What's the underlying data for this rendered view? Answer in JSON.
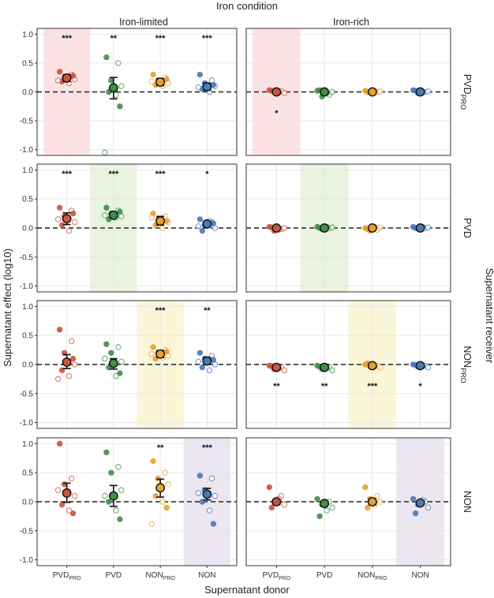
{
  "chart_data": {
    "type": "scatter",
    "title": "Iron condition",
    "xlabel": "Supernatant donor",
    "ylabel": "Supernatant effect (log10)",
    "right_label": "Supernatant receiver",
    "column_titles": [
      "Iron-limited",
      "Iron-rich"
    ],
    "rows": [
      {
        "key": "PVD",
        "sub": "PRO"
      },
      {
        "key": "PVD",
        "sub": ""
      },
      {
        "key": "NON",
        "sub": "PRO"
      },
      {
        "key": "NON",
        "sub": ""
      }
    ],
    "donors": [
      {
        "key": "PVD",
        "sub": "PRO"
      },
      {
        "key": "PVD",
        "sub": ""
      },
      {
        "key": "NON",
        "sub": "PRO"
      },
      {
        "key": "NON",
        "sub": ""
      }
    ],
    "donor_colors": [
      "#c8553d",
      "#3f8f4a",
      "#e8a030",
      "#4a7ab8"
    ],
    "highlight_colors": [
      "#fde2e4",
      "#e9f3df",
      "#fbf6d8",
      "#ece6f1"
    ],
    "ylim": [
      -1.1,
      1.1
    ],
    "yticks": [
      -1.0,
      -0.5,
      0.0,
      0.5,
      1.0
    ],
    "ytick_labels": [
      "-1.0",
      "-0.5",
      "0.0",
      "0.5",
      "1.0"
    ],
    "reference_line": 0,
    "panels": [
      {
        "row": 0,
        "col": 0,
        "means": [
          0.24,
          0.07,
          0.17,
          0.09
        ],
        "ci": [
          [
            0.18,
            0.3
          ],
          [
            -0.12,
            0.25
          ],
          [
            0.11,
            0.23
          ],
          [
            0.03,
            0.15
          ]
        ],
        "sig": [
          "***",
          "**",
          "***",
          "***"
        ],
        "sig_pos": [
          "top",
          "top",
          "top",
          "top"
        ],
        "points": [
          [
            0.35,
            0.3,
            0.25,
            0.22,
            0.18,
            0.15,
            0.28,
            0.2
          ],
          [
            0.6,
            0.5,
            0.2,
            0.1,
            0.0,
            -0.05,
            -0.25,
            -1.05
          ],
          [
            0.3,
            0.25,
            0.2,
            0.15,
            0.12,
            0.1,
            0.22,
            0.18
          ],
          [
            0.3,
            0.2,
            0.15,
            0.1,
            0.05,
            0.0,
            0.12,
            0.08
          ]
        ]
      },
      {
        "row": 0,
        "col": 1,
        "means": [
          0.0,
          0.0,
          0.0,
          0.0
        ],
        "ci": [
          [
            -0.02,
            0.02
          ],
          [
            -0.02,
            0.02
          ],
          [
            -0.02,
            0.02
          ],
          [
            -0.02,
            0.02
          ]
        ],
        "sig": [
          "*",
          "",
          "",
          ""
        ],
        "sig_pos": [
          "bottom",
          "",
          "",
          ""
        ],
        "points": [
          [
            0.03,
            0.01,
            0.0,
            -0.02,
            0.02,
            -0.01
          ],
          [
            0.02,
            -0.05,
            -0.08,
            0.0,
            0.03,
            -0.02
          ],
          [
            0.02,
            0.0,
            -0.01,
            0.01,
            0.0,
            0.02
          ],
          [
            0.03,
            0.0,
            -0.02,
            0.01,
            0.02,
            0.0
          ]
        ]
      },
      {
        "row": 1,
        "col": 0,
        "means": [
          0.16,
          0.22,
          0.12,
          0.07
        ],
        "ci": [
          [
            0.06,
            0.26
          ],
          [
            0.18,
            0.27
          ],
          [
            0.05,
            0.2
          ],
          [
            0.02,
            0.12
          ]
        ],
        "sig": [
          "***",
          "***",
          "***",
          "*"
        ],
        "sig_pos": [
          "top",
          "top",
          "top",
          "top"
        ],
        "points": [
          [
            0.35,
            0.3,
            0.2,
            0.1,
            0.05,
            -0.05,
            0.25,
            0.15
          ],
          [
            0.35,
            0.3,
            0.25,
            0.2,
            0.15,
            0.18,
            0.28,
            0.22
          ],
          [
            0.25,
            0.2,
            0.15,
            0.1,
            0.05,
            0.0,
            0.12,
            0.18
          ],
          [
            0.15,
            0.1,
            0.05,
            0.0,
            -0.05,
            0.12,
            0.08,
            0.03
          ]
        ]
      },
      {
        "row": 1,
        "col": 1,
        "means": [
          0.0,
          0.0,
          0.0,
          0.0
        ],
        "ci": [
          [
            -0.02,
            0.02
          ],
          [
            -0.02,
            0.02
          ],
          [
            -0.02,
            0.02
          ],
          [
            -0.02,
            0.02
          ]
        ],
        "sig": [
          "",
          "",
          "",
          ""
        ],
        "sig_pos": [
          "",
          "",
          "",
          ""
        ],
        "points": [
          [
            0.02,
            -0.02,
            -0.05,
            0.0,
            0.01,
            -0.03
          ],
          [
            0.02,
            0.0,
            -0.02,
            0.01,
            0.0,
            0.02
          ],
          [
            0.0,
            -0.03,
            -0.05,
            0.01,
            -0.02,
            0.02
          ],
          [
            0.02,
            0.0,
            -0.01,
            0.01,
            0.0,
            0.02
          ]
        ]
      },
      {
        "row": 2,
        "col": 0,
        "means": [
          0.04,
          0.02,
          0.18,
          0.06
        ],
        "ci": [
          [
            -0.07,
            0.17
          ],
          [
            -0.08,
            0.1
          ],
          [
            0.12,
            0.24
          ],
          [
            0.0,
            0.12
          ]
        ],
        "sig": [
          "",
          "",
          "***",
          "**"
        ],
        "sig_pos": [
          "",
          "",
          "top",
          "top"
        ],
        "points": [
          [
            0.6,
            0.4,
            0.2,
            0.0,
            -0.1,
            -0.2,
            0.1,
            -0.25
          ],
          [
            0.35,
            0.3,
            0.2,
            0.05,
            -0.05,
            -0.2,
            -0.15,
            0.1
          ],
          [
            0.3,
            0.25,
            0.2,
            0.15,
            0.1,
            0.12,
            0.22,
            0.18
          ],
          [
            0.2,
            0.15,
            0.1,
            0.0,
            -0.05,
            -0.1,
            0.08,
            0.05
          ]
        ]
      },
      {
        "row": 2,
        "col": 1,
        "means": [
          -0.05,
          -0.05,
          -0.02,
          -0.02
        ],
        "ci": [
          [
            -0.08,
            -0.02
          ],
          [
            -0.08,
            -0.02
          ],
          [
            -0.05,
            0.01
          ],
          [
            -0.05,
            0.01
          ]
        ],
        "sig": [
          "**",
          "**",
          "***",
          "*"
        ],
        "sig_pos": [
          "bottom",
          "bottom",
          "bottom",
          "bottom"
        ],
        "points": [
          [
            -0.02,
            -0.05,
            -0.08,
            -0.1,
            -0.03,
            -0.06
          ],
          [
            -0.02,
            -0.05,
            -0.08,
            -0.1,
            -0.04,
            -0.06
          ],
          [
            0.0,
            -0.02,
            -0.04,
            -0.05,
            0.02,
            -0.03
          ],
          [
            0.0,
            -0.02,
            -0.04,
            -0.05,
            -0.01,
            -0.03
          ]
        ]
      },
      {
        "row": 3,
        "col": 0,
        "means": [
          0.15,
          0.1,
          0.24,
          0.13
        ],
        "ci": [
          [
            -0.01,
            0.32
          ],
          [
            -0.08,
            0.28
          ],
          [
            0.08,
            0.39
          ],
          [
            0.03,
            0.23
          ]
        ],
        "sig": [
          "",
          "",
          "**",
          "***"
        ],
        "sig_pos": [
          "",
          "",
          "top",
          "top"
        ],
        "points": [
          [
            1.0,
            0.4,
            0.3,
            0.1,
            -0.05,
            -0.15,
            -0.2,
            0.2
          ],
          [
            0.85,
            0.6,
            0.5,
            0.2,
            0.0,
            -0.15,
            -0.3,
            0.1
          ],
          [
            0.7,
            0.5,
            0.4,
            0.3,
            0.1,
            0.0,
            -0.1,
            -0.38
          ],
          [
            0.45,
            0.4,
            0.2,
            0.1,
            0.0,
            -0.15,
            -0.38,
            0.15
          ]
        ]
      },
      {
        "row": 3,
        "col": 1,
        "means": [
          0.0,
          -0.03,
          0.0,
          -0.02
        ],
        "ci": [
          [
            -0.05,
            0.04
          ],
          [
            -0.07,
            0.01
          ],
          [
            -0.05,
            0.05
          ],
          [
            -0.05,
            0.01
          ]
        ],
        "sig": [
          "",
          "",
          "",
          ""
        ],
        "sig_pos": [
          "",
          "",
          "",
          ""
        ],
        "points": [
          [
            0.25,
            0.1,
            0.0,
            -0.05,
            -0.1,
            0.05
          ],
          [
            0.05,
            0.0,
            -0.05,
            -0.1,
            -0.25,
            -0.15
          ],
          [
            0.25,
            0.1,
            0.05,
            0.0,
            -0.1,
            -0.05
          ],
          [
            0.05,
            0.0,
            -0.05,
            -0.1,
            -0.2,
            0.03
          ]
        ]
      }
    ]
  }
}
